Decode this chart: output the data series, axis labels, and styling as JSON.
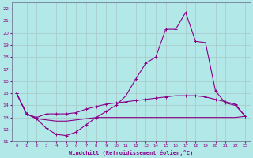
{
  "xlabel": "Windchill (Refroidissement éolien,°C)",
  "bg_color": "#b3e8e8",
  "grid_color": "#aacccc",
  "line_color": "#880088",
  "xlim": [
    -0.5,
    23.5
  ],
  "ylim": [
    11,
    22.5
  ],
  "xticks": [
    0,
    1,
    2,
    3,
    4,
    5,
    6,
    7,
    8,
    9,
    10,
    11,
    12,
    13,
    14,
    15,
    16,
    17,
    18,
    19,
    20,
    21,
    22,
    23
  ],
  "yticks": [
    11,
    12,
    13,
    14,
    15,
    16,
    17,
    18,
    19,
    20,
    21,
    22
  ],
  "line1_x": [
    0,
    1,
    2,
    3,
    4,
    5,
    6,
    7,
    8,
    9,
    10,
    11,
    12,
    13,
    14,
    15,
    16,
    17,
    18,
    19,
    20,
    21,
    22,
    23
  ],
  "line1_y": [
    15.0,
    13.3,
    12.9,
    12.1,
    11.6,
    11.5,
    11.8,
    12.4,
    13.0,
    13.5,
    14.0,
    14.8,
    16.2,
    17.5,
    18.0,
    20.3,
    20.3,
    21.7,
    19.3,
    19.2,
    15.2,
    14.2,
    14.0,
    13.1
  ],
  "line2_x": [
    0,
    1,
    2,
    3,
    4,
    5,
    6,
    7,
    8,
    9,
    10,
    11,
    12,
    13,
    14,
    15,
    16,
    17,
    18,
    19,
    20,
    21,
    22,
    23
  ],
  "line2_y": [
    15.0,
    13.3,
    13.0,
    13.3,
    13.3,
    13.3,
    13.4,
    13.7,
    13.9,
    14.1,
    14.2,
    14.3,
    14.4,
    14.5,
    14.6,
    14.7,
    14.8,
    14.8,
    14.8,
    14.7,
    14.5,
    14.3,
    14.1,
    13.1
  ],
  "line3_x": [
    0,
    1,
    2,
    3,
    4,
    5,
    6,
    7,
    8,
    9,
    10,
    11,
    12,
    13,
    14,
    15,
    16,
    17,
    18,
    19,
    20,
    21,
    22,
    23
  ],
  "line3_y": [
    15.0,
    13.3,
    12.9,
    12.8,
    12.7,
    12.7,
    12.8,
    12.9,
    13.0,
    13.0,
    13.0,
    13.0,
    13.0,
    13.0,
    13.0,
    13.0,
    13.0,
    13.0,
    13.0,
    13.0,
    13.0,
    13.0,
    13.0,
    13.1
  ]
}
